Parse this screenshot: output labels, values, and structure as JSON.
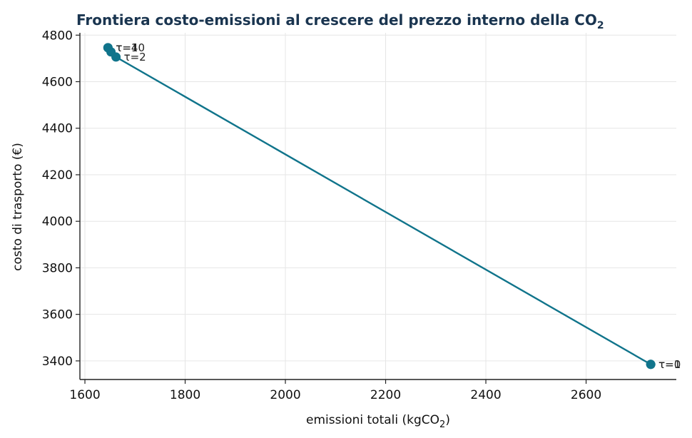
{
  "chart_data": {
    "type": "line",
    "title": "Frontiera costo-emissioni al crescere del prezzo interno della CO",
    "title_sub": "2",
    "xlabel": "emissioni totali (kgCO",
    "xlabel_sub": "2",
    "xlabel_end": ")",
    "ylabel": "costo di trasporto (€)",
    "xlim": [
      1590,
      2780
    ],
    "ylim": [
      3320,
      4810
    ],
    "x_ticks": [
      1600,
      1800,
      2000,
      2200,
      2400,
      2600
    ],
    "y_ticks": [
      3400,
      3600,
      3800,
      4000,
      4200,
      4400,
      4600,
      4800
    ],
    "grid": true,
    "series": [
      {
        "color": "#10748b",
        "points": [
          {
            "x": 2729,
            "y": 3385,
            "label": "τ=0"
          },
          {
            "x": 2729,
            "y": 3385,
            "label": "τ=1"
          },
          {
            "x": 1662,
            "y": 4706,
            "label": "τ=2"
          },
          {
            "x": 1652,
            "y": 4728,
            "label": ""
          },
          {
            "x": 1646,
            "y": 4746,
            "label": "τ=4"
          },
          {
            "x": 1646,
            "y": 4746,
            "label": "τ=10"
          }
        ]
      }
    ]
  }
}
